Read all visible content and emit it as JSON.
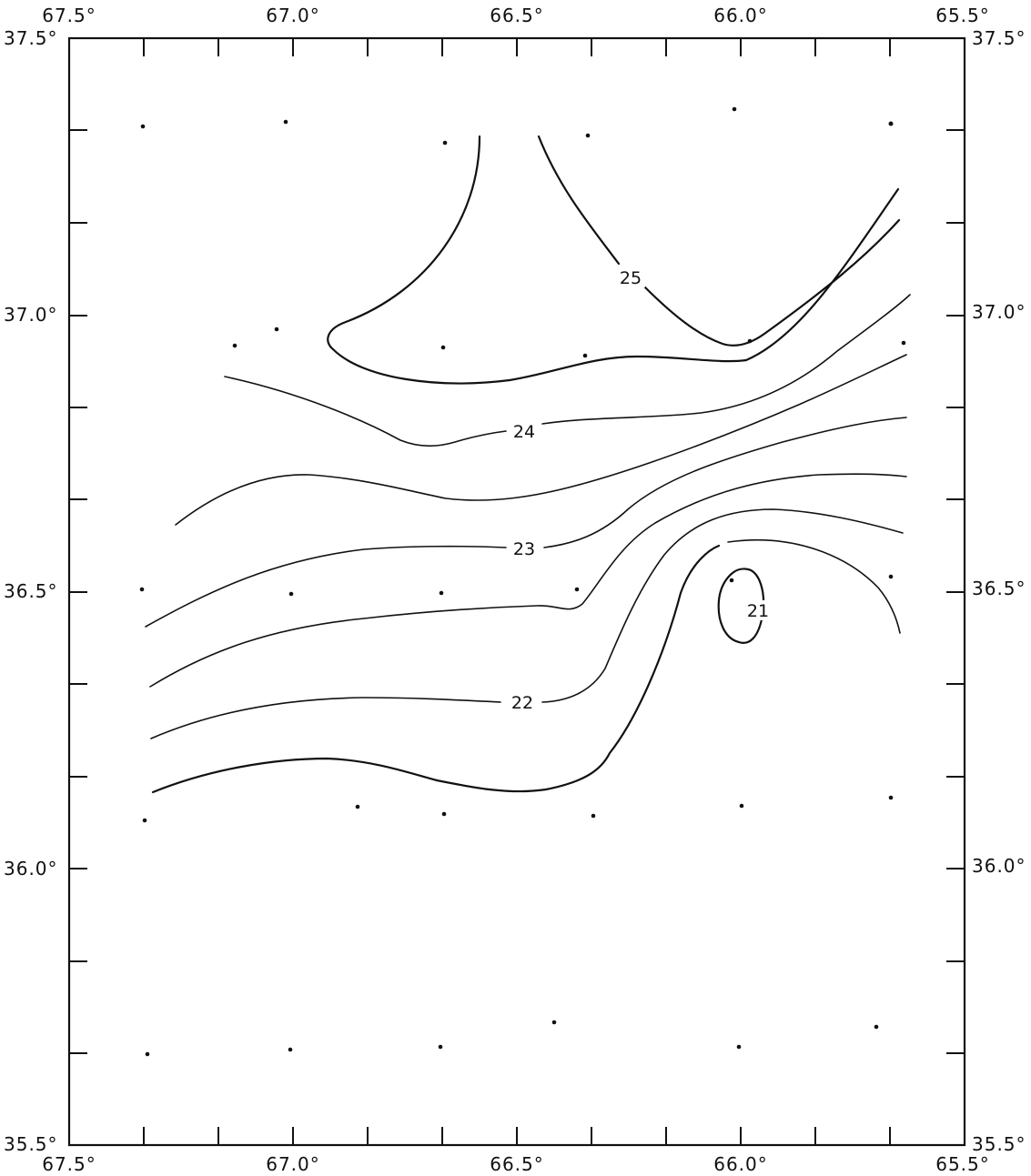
{
  "axes": {
    "top_labels": [
      "67.5°",
      "67.0°",
      "66.5°",
      "66.0°",
      "65.5°"
    ],
    "bottom_labels": [
      "67.5°",
      "67.0°",
      "66.5°",
      "66.0°",
      "65.5°"
    ],
    "left_labels": [
      "37.5°",
      "37.0°",
      "36.5°",
      "36.0°",
      "35.5°"
    ],
    "right_labels": [
      "37.5°",
      "37.0°",
      "36.5°",
      "36.0°",
      "35.5°"
    ]
  },
  "contours": {
    "label_25": "25",
    "label_24": "24",
    "label_23": "23",
    "label_22": "22",
    "label_21": "21"
  }
}
